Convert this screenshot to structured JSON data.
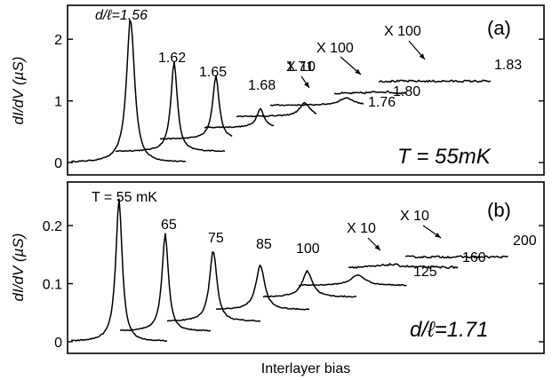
{
  "x_axis_label": "Interlayer bias",
  "chart_data": [
    {
      "type": "line",
      "panel_label": "(a)",
      "ylabel": "dI/dV (µS)",
      "ylim": [
        -0.2,
        2.55
      ],
      "y_ticks": [
        0,
        1,
        2
      ],
      "condition_label": "T = 55mK",
      "parameter_prefix": "d/ℓ=",
      "series": [
        {
          "name": "1.56",
          "offset": 0,
          "peak_height": 2.38,
          "label": "d/ℓ=1.56"
        },
        {
          "name": "1.62",
          "offset": 0.18,
          "peak_height": 1.45,
          "label": "1.62"
        },
        {
          "name": "1.65",
          "offset": 0.38,
          "peak_height": 1.03,
          "label": "1.65"
        },
        {
          "name": "1.68",
          "offset": 0.57,
          "peak_height": 0.31,
          "label": "1.68"
        },
        {
          "name": "1.71",
          "offset": 0.75,
          "peak_height": 0.22,
          "label": "1.71",
          "multiplier": "X 10"
        },
        {
          "name": "1.76",
          "offset": 0.93,
          "peak_height": 0.12,
          "label": "1.76"
        },
        {
          "name": "1.80",
          "offset": 1.12,
          "peak_height": 0.03,
          "label": "1.80",
          "multiplier": "X 100"
        },
        {
          "name": "1.83",
          "offset": 1.32,
          "peak_height": 0.0,
          "label": "1.83",
          "multiplier": "X 100"
        }
      ]
    },
    {
      "type": "line",
      "panel_label": "(b)",
      "ylabel": "dI/dV (µS)",
      "ylim": [
        -0.02,
        0.275
      ],
      "y_ticks": [
        0,
        0.1,
        0.2
      ],
      "condition_label": "d/ℓ=1.71",
      "parameter_prefix": "T = ",
      "parameter_unit": " mK",
      "series": [
        {
          "name": "55",
          "offset": 0,
          "peak_height": 0.245,
          "label": "T = 55 mK"
        },
        {
          "name": "65",
          "offset": 0.018,
          "peak_height": 0.168,
          "label": "65"
        },
        {
          "name": "75",
          "offset": 0.035,
          "peak_height": 0.125,
          "label": "75"
        },
        {
          "name": "85",
          "offset": 0.055,
          "peak_height": 0.078,
          "label": "85"
        },
        {
          "name": "100",
          "offset": 0.077,
          "peak_height": 0.045,
          "label": "100"
        },
        {
          "name": "125",
          "offset": 0.097,
          "peak_height": 0.018,
          "label": "125"
        },
        {
          "name": "160",
          "offset": 0.128,
          "peak_height": 0.005,
          "label": "160",
          "multiplier": "X 10"
        },
        {
          "name": "200",
          "offset": 0.146,
          "peak_height": 0.0,
          "label": "200",
          "multiplier": "X 10"
        }
      ]
    }
  ]
}
